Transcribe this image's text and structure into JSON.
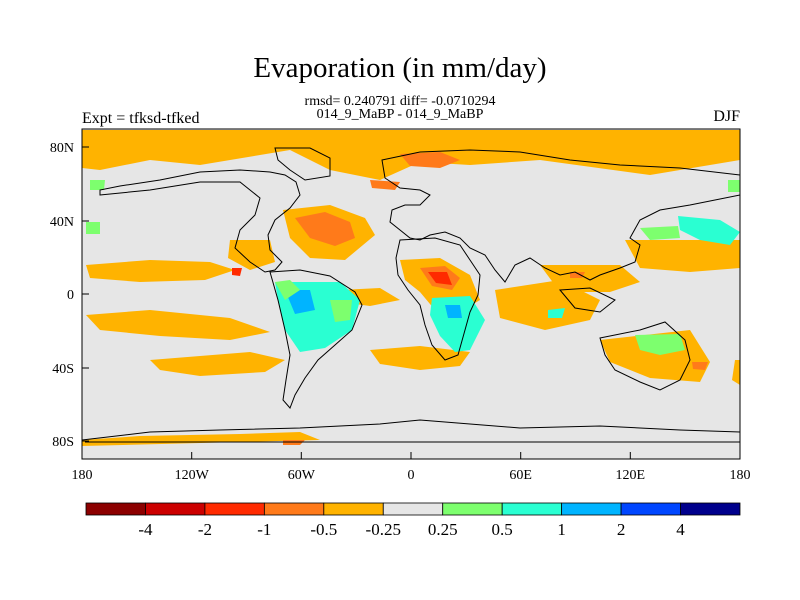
{
  "title": "Evaporation (in mm/day)",
  "stats": "rmsd= 0.240791 diff= -0.0710294",
  "subtitle": "014_9_MaBP - 014_9_MaBP",
  "left_label": "Expt = tfksd-tfked",
  "right_label": "DJF",
  "map": {
    "lon_ticks": [
      "180",
      "120W",
      "60W",
      "0",
      "60E",
      "120E",
      "180"
    ],
    "lat_ticks": [
      "80N",
      "40N",
      "0",
      "40S",
      "80S"
    ],
    "background_color": "#e6e6e6"
  },
  "colorbar": {
    "colors": [
      "#8c0000",
      "#cc0000",
      "#ff2a00",
      "#ff7a1a",
      "#ffb300",
      "#e6e6e6",
      "#7dff6e",
      "#2affd2",
      "#00b4ff",
      "#0046ff",
      "#00008c"
    ],
    "labels": [
      "-4",
      "-2",
      "-1",
      "-0.5",
      "-0.25",
      "0.25",
      "0.5",
      "1",
      "2",
      "4"
    ]
  }
}
